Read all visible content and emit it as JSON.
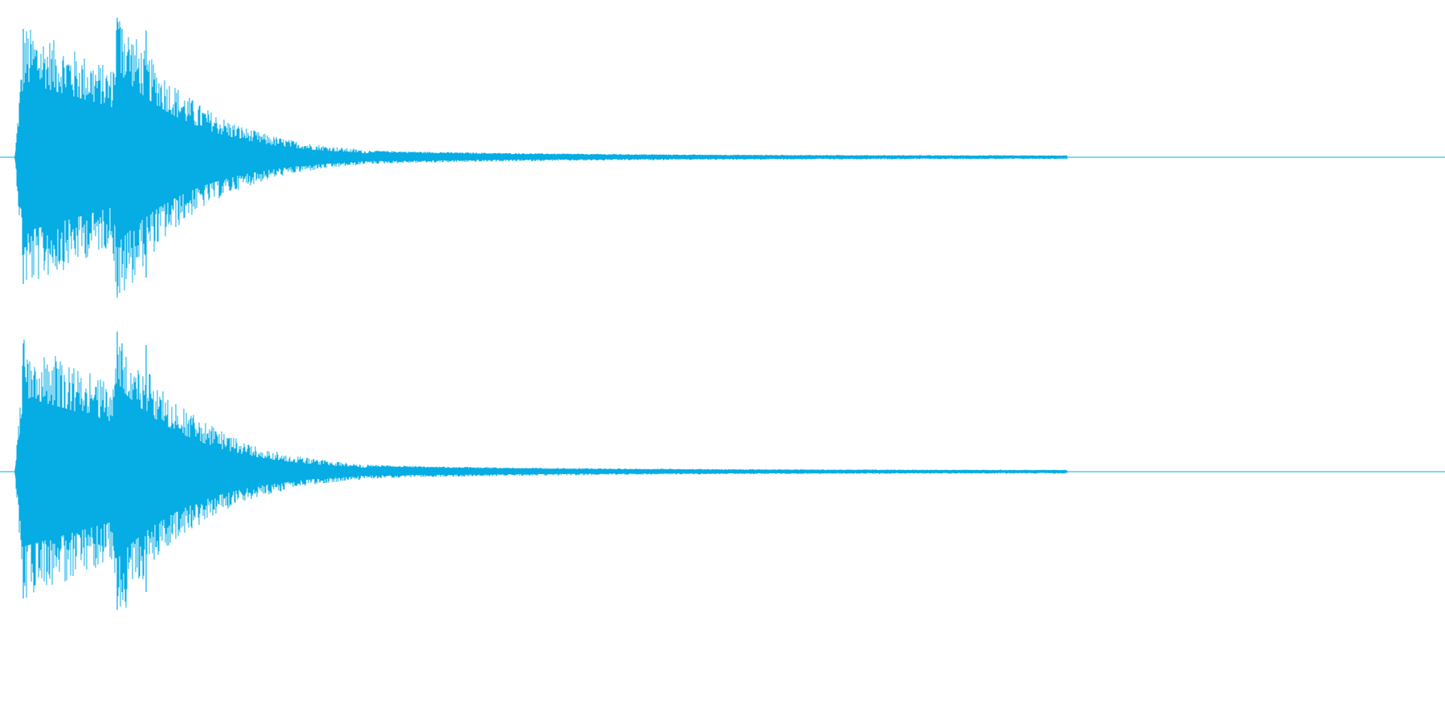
{
  "waveform": {
    "color": "#06ACE4",
    "background": "#FFFFFF",
    "channels": [
      {
        "id": "left"
      },
      {
        "id": "right"
      }
    ]
  }
}
